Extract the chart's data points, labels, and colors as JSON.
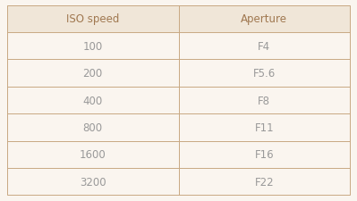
{
  "headers": [
    "ISO speed",
    "Aperture"
  ],
  "rows": [
    [
      "100",
      "F4"
    ],
    [
      "200",
      "F5.6"
    ],
    [
      "400",
      "F8"
    ],
    [
      "800",
      "F11"
    ],
    [
      "1600",
      "F16"
    ],
    [
      "3200",
      "F22"
    ]
  ],
  "background_color": "#faf5ef",
  "header_bg_color": "#f0e6d8",
  "border_color": "#c8a882",
  "header_text_color": "#a07850",
  "cell_text_color": "#999999",
  "figsize": [
    3.99,
    2.26
  ],
  "dpi": 100,
  "fontsize": 8.5
}
